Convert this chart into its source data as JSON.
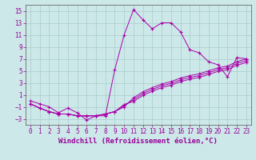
{
  "bg_color": "#cce8e8",
  "grid_color": "#aacccc",
  "line_color": "#aa00aa",
  "xlabel": "Windchill (Refroidissement éolien,°C)",
  "xlim": [
    -0.5,
    23.5
  ],
  "ylim": [
    -4,
    16
  ],
  "xticks": [
    0,
    1,
    2,
    3,
    4,
    5,
    6,
    7,
    8,
    9,
    10,
    11,
    12,
    13,
    14,
    15,
    16,
    17,
    18,
    19,
    20,
    21,
    22,
    23
  ],
  "yticks": [
    -3,
    -1,
    1,
    3,
    5,
    7,
    9,
    11,
    13,
    15
  ],
  "main_line_x": [
    0,
    1,
    2,
    3,
    4,
    5,
    6,
    7,
    8,
    9,
    10,
    11,
    12,
    13,
    14,
    15,
    16,
    17,
    18,
    19,
    20,
    21,
    22,
    23
  ],
  "main_line_y": [
    0.0,
    -0.5,
    -1.0,
    -2.0,
    -1.2,
    -2.0,
    -3.2,
    -2.5,
    -2.5,
    5.2,
    11.0,
    15.2,
    13.5,
    12.0,
    13.0,
    13.0,
    11.5,
    8.5,
    8.0,
    6.5,
    6.0,
    4.0,
    7.2,
    7.0
  ],
  "line2_x": [
    0,
    1,
    2,
    3,
    4,
    5,
    6,
    7,
    8,
    9,
    10,
    11,
    12,
    13,
    14,
    15,
    16,
    17,
    18,
    19,
    20,
    21,
    22,
    23
  ],
  "line2_y": [
    -0.5,
    -1.2,
    -1.8,
    -2.2,
    -2.2,
    -2.5,
    -2.5,
    -2.5,
    -2.2,
    -1.8,
    -1.0,
    0.5,
    1.5,
    2.2,
    2.8,
    3.2,
    3.8,
    4.2,
    4.5,
    5.0,
    5.5,
    5.8,
    6.5,
    7.0
  ],
  "line3_x": [
    0,
    1,
    2,
    3,
    4,
    5,
    6,
    7,
    8,
    9,
    10,
    11,
    12,
    13,
    14,
    15,
    16,
    17,
    18,
    19,
    20,
    21,
    22,
    23
  ],
  "line3_y": [
    -0.5,
    -1.2,
    -1.8,
    -2.2,
    -2.2,
    -2.5,
    -2.5,
    -2.5,
    -2.2,
    -1.8,
    -0.8,
    0.2,
    1.2,
    1.9,
    2.5,
    2.9,
    3.5,
    3.9,
    4.2,
    4.7,
    5.2,
    5.5,
    6.2,
    6.7
  ],
  "line4_x": [
    0,
    1,
    2,
    3,
    4,
    5,
    6,
    7,
    8,
    9,
    10,
    11,
    12,
    13,
    14,
    15,
    16,
    17,
    18,
    19,
    20,
    21,
    22,
    23
  ],
  "line4_y": [
    -0.5,
    -1.2,
    -1.8,
    -2.2,
    -2.2,
    -2.5,
    -2.5,
    -2.5,
    -2.2,
    -1.8,
    -0.6,
    -0.1,
    0.9,
    1.6,
    2.2,
    2.6,
    3.2,
    3.6,
    3.9,
    4.4,
    4.9,
    5.2,
    5.9,
    6.4
  ],
  "font_color": "#990099",
  "tick_fontsize": 5.5,
  "label_fontsize": 6.5
}
